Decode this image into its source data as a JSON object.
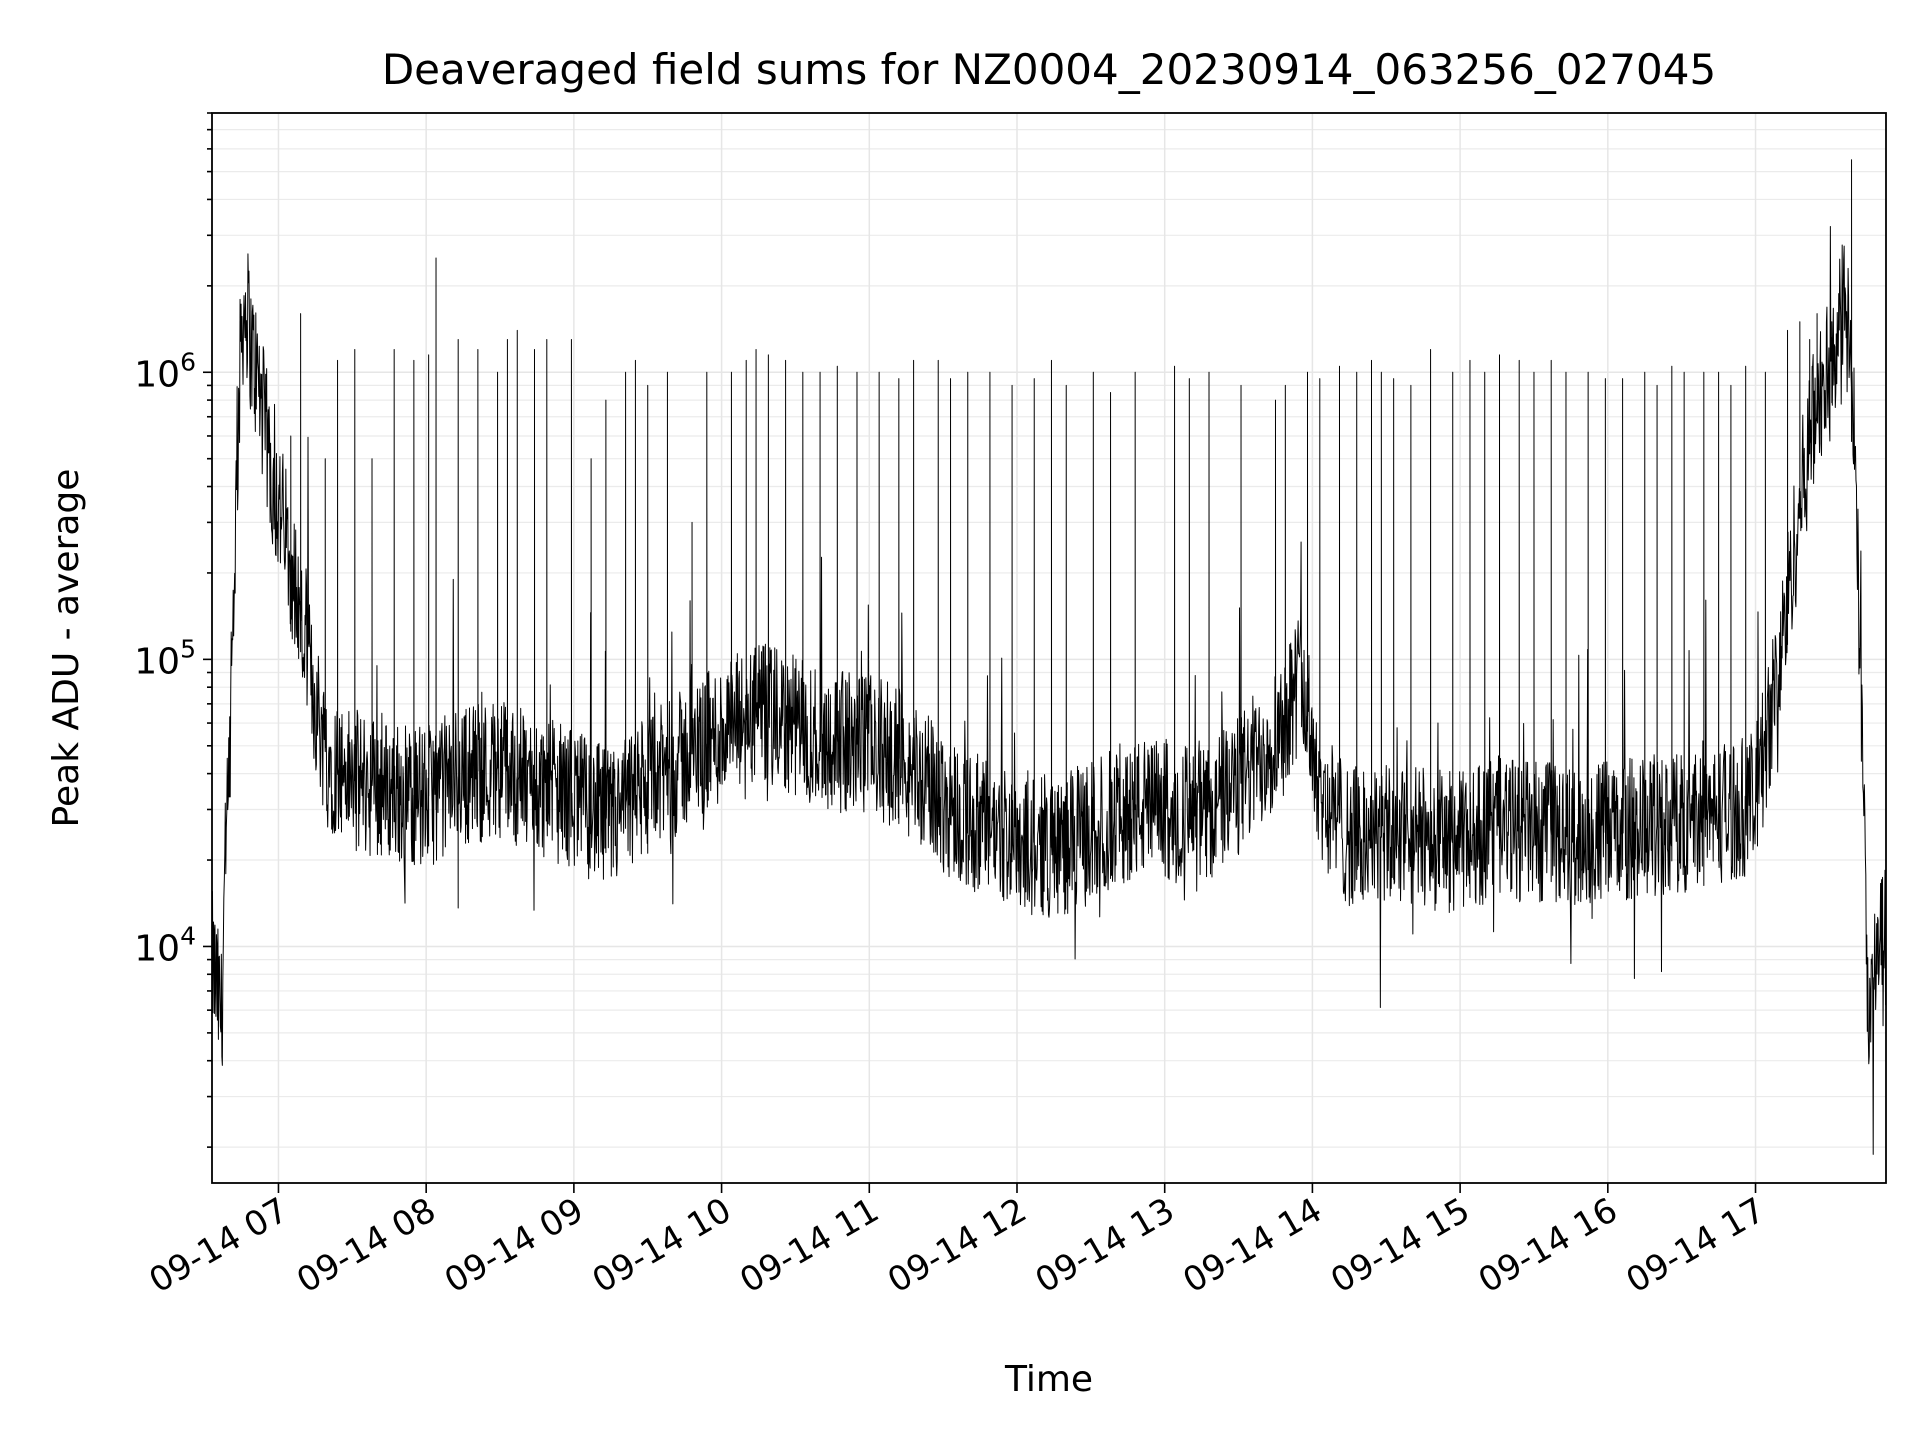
{
  "chart_data": {
    "type": "line",
    "title": "Deaveraged field sums for NZ0004_20230914_063256_027045",
    "xlabel": "Time",
    "ylabel": "Peak ADU - average",
    "yscale": "log",
    "grid": true,
    "xlim": [
      "09-14 06:33",
      "09-14 17:53"
    ],
    "ylim": [
      1500,
      8000000
    ],
    "x_ticks": [
      "09-14 07",
      "09-14 08",
      "09-14 09",
      "09-14 10",
      "09-14 11",
      "09-14 12",
      "09-14 13",
      "09-14 14",
      "09-14 15",
      "09-14 16",
      "09-14 17"
    ],
    "y_ticks": [
      {
        "value": 10000,
        "base": "10",
        "exp": "4"
      },
      {
        "value": 100000,
        "base": "10",
        "exp": "5"
      },
      {
        "value": 1000000,
        "base": "10",
        "exp": "6"
      }
    ],
    "line_color": "#000000",
    "series": [
      {
        "x": [
          "06:33",
          "06:35",
          "06:37",
          "06:38",
          "06:40",
          "06:42",
          "06:44",
          "06:45",
          "06:47",
          "06:49",
          "06:52",
          "06:55",
          "06:58",
          "07:02",
          "07:06",
          "07:10",
          "07:15",
          "07:20",
          "07:30",
          "07:45",
          "08:00",
          "08:15",
          "08:30",
          "08:45",
          "09:00",
          "09:15",
          "09:30",
          "09:45",
          "10:00",
          "10:15",
          "10:30",
          "10:45",
          "11:00",
          "11:15",
          "11:30",
          "11:45",
          "12:00",
          "12:15",
          "12:30",
          "12:45",
          "13:00",
          "13:15",
          "13:30",
          "13:45",
          "13:55",
          "14:05",
          "14:15",
          "14:30",
          "14:45",
          "15:00",
          "15:15",
          "15:30",
          "15:45",
          "16:00",
          "16:15",
          "16:30",
          "16:45",
          "17:00",
          "17:10",
          "17:15",
          "17:20",
          "17:25",
          "17:30",
          "17:35",
          "17:38",
          "17:40",
          "17:42",
          "17:44",
          "17:46",
          "17:48",
          "17:50",
          "17:53"
        ],
        "y": [
          9000,
          7000,
          5500,
          16000,
          35000,
          200000,
          800000,
          1500000,
          1700000,
          1200000,
          900000,
          600000,
          400000,
          300000,
          200000,
          120000,
          70000,
          45000,
          38000,
          35000,
          33000,
          40000,
          42000,
          36000,
          33000,
          27000,
          36000,
          45000,
          55000,
          65000,
          58000,
          52000,
          50000,
          44000,
          32000,
          26000,
          24000,
          22000,
          25000,
          30000,
          30000,
          28000,
          36000,
          55000,
          85000,
          32000,
          24000,
          24000,
          24000,
          23000,
          26000,
          25000,
          24000,
          25000,
          26000,
          27000,
          29000,
          32000,
          100000,
          220000,
          450000,
          800000,
          1000000,
          1800000,
          1300000,
          600000,
          150000,
          30000,
          5000,
          7000,
          10000,
          11000
        ],
        "spikes": [
          [
            "06:56",
            700000
          ],
          [
            "07:05",
            600000
          ],
          [
            "07:09",
            1600000
          ],
          [
            "07:19",
            500000
          ],
          [
            "07:24",
            1100000
          ],
          [
            "07:31",
            1200000
          ],
          [
            "07:38",
            500000
          ],
          [
            "07:47",
            1200000
          ],
          [
            "07:55",
            1100000
          ],
          [
            "08:01",
            1150000
          ],
          [
            "08:04",
            2500000
          ],
          [
            "08:13",
            1300000
          ],
          [
            "08:21",
            1200000
          ],
          [
            "08:29",
            1000000
          ],
          [
            "08:33",
            1300000
          ],
          [
            "08:37",
            1400000
          ],
          [
            "08:44",
            1200000
          ],
          [
            "08:49",
            1300000
          ],
          [
            "08:59",
            1300000
          ],
          [
            "09:07",
            500000
          ],
          [
            "09:13",
            800000
          ],
          [
            "09:21",
            1000000
          ],
          [
            "09:25",
            1100000
          ],
          [
            "09:30",
            900000
          ],
          [
            "09:38",
            1000000
          ],
          [
            "09:48",
            300000
          ],
          [
            "09:54",
            1000000
          ],
          [
            "10:04",
            1000000
          ],
          [
            "10:10",
            1100000
          ],
          [
            "10:14",
            1200000
          ],
          [
            "10:19",
            1150000
          ],
          [
            "10:26",
            1100000
          ],
          [
            "10:33",
            1000000
          ],
          [
            "10:40",
            1000000
          ],
          [
            "10:47",
            1050000
          ],
          [
            "10:55",
            1000000
          ],
          [
            "11:04",
            1000000
          ],
          [
            "11:12",
            950000
          ],
          [
            "11:18",
            1100000
          ],
          [
            "11:28",
            1100000
          ],
          [
            "11:33",
            950000
          ],
          [
            "11:40",
            1000000
          ],
          [
            "11:49",
            1000000
          ],
          [
            "11:58",
            900000
          ],
          [
            "12:07",
            950000
          ],
          [
            "12:14",
            1100000
          ],
          [
            "12:20",
            900000
          ],
          [
            "12:31",
            1000000
          ],
          [
            "12:38",
            850000
          ],
          [
            "12:48",
            1000000
          ],
          [
            "13:04",
            1050000
          ],
          [
            "13:10",
            950000
          ],
          [
            "13:18",
            1000000
          ],
          [
            "13:31",
            900000
          ],
          [
            "13:45",
            800000
          ],
          [
            "13:49",
            900000
          ],
          [
            "13:58",
            1000000
          ],
          [
            "14:03",
            950000
          ],
          [
            "14:11",
            1050000
          ],
          [
            "14:18",
            1000000
          ],
          [
            "14:24",
            1100000
          ],
          [
            "14:28",
            1000000
          ],
          [
            "14:33",
            950000
          ],
          [
            "14:40",
            900000
          ],
          [
            "14:48",
            1200000
          ],
          [
            "14:57",
            1000000
          ],
          [
            "15:04",
            1100000
          ],
          [
            "15:10",
            1000000
          ],
          [
            "15:16",
            1150000
          ],
          [
            "15:24",
            1100000
          ],
          [
            "15:30",
            1000000
          ],
          [
            "15:37",
            1100000
          ],
          [
            "15:43",
            1000000
          ],
          [
            "15:52",
            1000000
          ],
          [
            "15:59",
            950000
          ],
          [
            "16:06",
            950000
          ],
          [
            "16:15",
            1000000
          ],
          [
            "16:20",
            900000
          ],
          [
            "16:26",
            1050000
          ],
          [
            "16:31",
            1000000
          ],
          [
            "16:39",
            1000000
          ],
          [
            "16:45",
            1000000
          ],
          [
            "16:50",
            900000
          ],
          [
            "16:56",
            1050000
          ],
          [
            "17:04",
            1000000
          ],
          [
            "17:13",
            1400000
          ],
          [
            "17:18",
            1500000
          ],
          [
            "17:22",
            1300000
          ],
          [
            "17:25",
            1600000
          ],
          [
            "17:31",
            1500000
          ],
          [
            "17:39",
            5500000
          ]
        ]
      }
    ]
  }
}
